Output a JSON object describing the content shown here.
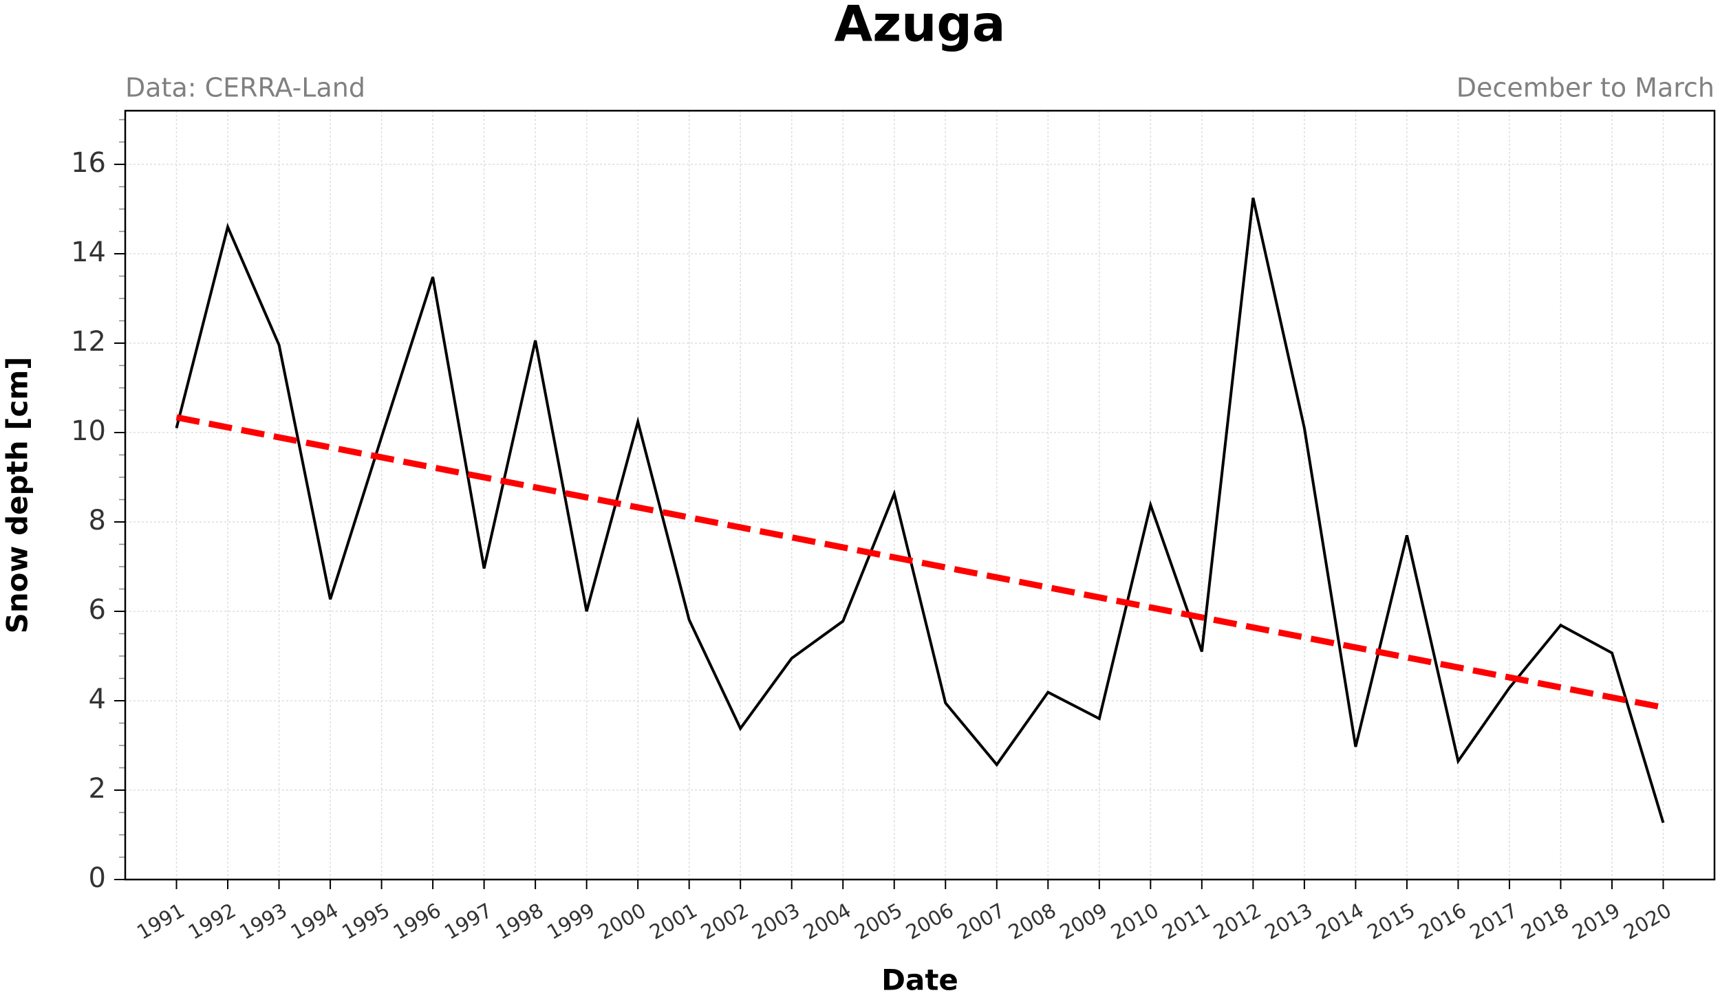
{
  "chart_data": {
    "type": "line",
    "title": "Azuga",
    "subtitle_left": "Data: CERRA-Land",
    "subtitle_right": "December to March",
    "xlabel": "Date",
    "ylabel": "Snow depth [cm]",
    "xlim": [
      1990,
      2021
    ],
    "xticks": [
      1991,
      1992,
      1993,
      1994,
      1995,
      1996,
      1997,
      1998,
      1999,
      2000,
      2001,
      2002,
      2003,
      2004,
      2005,
      2006,
      2007,
      2008,
      2009,
      2010,
      2011,
      2012,
      2013,
      2014,
      2015,
      2016,
      2017,
      2018,
      2019,
      2020
    ],
    "ylim": [
      0,
      17.2
    ],
    "yticks": [
      0,
      2,
      4,
      6,
      8,
      10,
      12,
      14,
      16
    ],
    "yminorticks": [
      0.5,
      1,
      1.5,
      2.5,
      3,
      3.5,
      4.5,
      5,
      5.5,
      6.5,
      7,
      7.5,
      8.5,
      9,
      9.5,
      10.5,
      11,
      11.5,
      12.5,
      13,
      13.5,
      14.5,
      15,
      15.5,
      16.5,
      17
    ],
    "grid": true,
    "series": [
      {
        "color": "#000000",
        "dash": false,
        "x": [
          1991,
          1992,
          1993,
          1994,
          1995,
          1996,
          1997,
          1998,
          1999,
          2000,
          2001,
          2002,
          2003,
          2004,
          2005,
          2006,
          2007,
          2008,
          2009,
          2010,
          2011,
          2012,
          2013,
          2014,
          2015,
          2016,
          2017,
          2018,
          2019,
          2020
        ],
        "values": [
          10.1,
          14.6,
          11.96,
          6.27,
          9.9,
          13.48,
          6.96,
          12.06,
          6.0,
          10.24,
          5.81,
          3.38,
          4.95,
          5.78,
          8.63,
          3.95,
          2.57,
          4.19,
          3.6,
          8.38,
          5.1,
          15.25,
          10.1,
          2.97,
          7.7,
          2.65,
          4.29,
          5.69,
          5.07,
          1.27
        ]
      },
      {
        "color": "#ff0000",
        "dash": true,
        "x": [
          1991,
          2020
        ],
        "values": [
          10.34,
          3.85
        ]
      }
    ]
  }
}
